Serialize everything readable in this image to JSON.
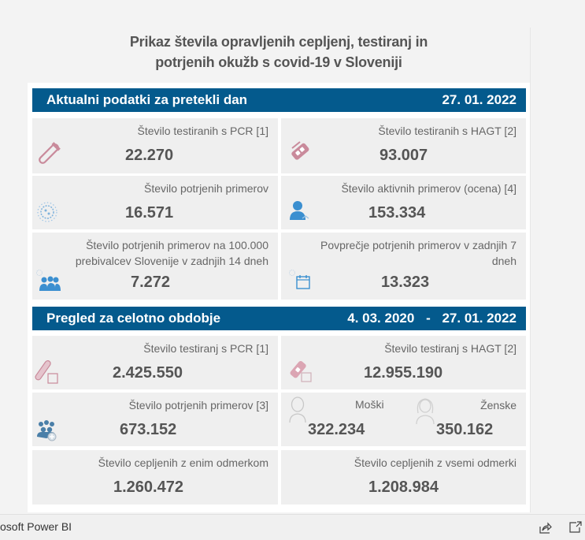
{
  "title": {
    "line1": "Prikaz števila opravljenih cepljenj, testiranj in",
    "line2": "potrjenih okužb s covid-19 v Sloveniji"
  },
  "section_daily": {
    "heading": "Aktualni podatki za pretekli dan",
    "date": "27. 01. 2022",
    "cards": [
      {
        "label": "Število testiranih s PCR [1]",
        "value": "22.270",
        "icon": "test-tube-icon"
      },
      {
        "label": "Število testiranih s HAGT [2]",
        "value": "93.007",
        "icon": "rapid-test-icon"
      },
      {
        "label": "Število potrjenih primerov",
        "value": "16.571",
        "icon": "virus-icon"
      },
      {
        "label": "Število aktivnih primerov (ocena) [4]",
        "value": "153.334",
        "icon": "person-icon"
      },
      {
        "label_line1": "Število potrjenih primerov na 100.000",
        "label_line2": "prebivalcev Slovenije v zadnjih 14 dneh",
        "value": "7.272",
        "icon": "group-icon"
      },
      {
        "label_line1": "Povprečje potrjenih primerov v zadnjih 7",
        "label_line2": "dneh",
        "value": "13.323",
        "icon": "calendar-icon"
      }
    ]
  },
  "section_total": {
    "heading": "Pregled za celotno obdobje",
    "date_from": "4. 03. 2020",
    "date_sep": "-",
    "date_to": "27. 01. 2022",
    "cards": [
      {
        "label": "Število testiranj s PCR [1]",
        "value": "2.425.550",
        "icon": "test-tube-icon"
      },
      {
        "label": "Število testiranj s HAGT [2]",
        "value": "12.955.190",
        "icon": "rapid-test-icon"
      },
      {
        "label": "Število potrjenih primerov [3]",
        "value": "673.152",
        "icon": "group-icon"
      },
      {
        "male_label": "Moški",
        "male_value": "322.234",
        "female_label": "Ženske",
        "female_value": "350.162"
      },
      {
        "label": "Število cepljenih z enim odmerkom",
        "value": "1.260.472"
      },
      {
        "label": "Število cepljenih z vsemi odmerki",
        "value": "1.208.984"
      }
    ]
  },
  "footer": {
    "brand": "osoft Power BI",
    "share_icon": "share-icon",
    "popout_icon": "popout-icon"
  },
  "colors": {
    "header_bg": "#045a8d",
    "card_bg": "#efefef",
    "icon_pink": "#c98a9b",
    "icon_blue": "#3b8fd0"
  }
}
